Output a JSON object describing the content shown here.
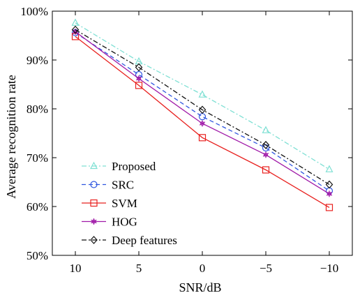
{
  "chart_data": {
    "type": "line",
    "title": "",
    "xlabel": "SNR/dB",
    "ylabel": "Average recognition rate",
    "x": [
      "10",
      "5",
      "0",
      "−5",
      "−10"
    ],
    "x_values": [
      10,
      5,
      0,
      -5,
      -10
    ],
    "ylim": [
      50,
      100
    ],
    "yticks": [
      50,
      60,
      70,
      80,
      90,
      100
    ],
    "ytick_labels": [
      "50%",
      "60%",
      "70%",
      "80%",
      "90%",
      "100%"
    ],
    "grid": false,
    "legend_position": "bottom-left",
    "series": [
      {
        "name": "Proposed",
        "values": [
          97.6,
          89.7,
          82.9,
          75.6,
          67.6
        ],
        "color": "#7fe0d4",
        "marker": "triangle",
        "dash": "dash-dot"
      },
      {
        "name": "SRC",
        "values": [
          95.6,
          87.0,
          78.4,
          72.0,
          63.2
        ],
        "color": "#2f56e0",
        "marker": "circle",
        "dash": "dashed"
      },
      {
        "name": "SVM",
        "values": [
          94.8,
          84.8,
          74.1,
          67.5,
          59.8
        ],
        "color": "#e8201e",
        "marker": "square",
        "dash": "solid"
      },
      {
        "name": "HOG",
        "values": [
          95.8,
          86.2,
          77.0,
          70.6,
          62.6
        ],
        "color": "#a01aa8",
        "marker": "star",
        "dash": "solid"
      },
      {
        "name": "Deep features",
        "values": [
          96.2,
          88.5,
          79.8,
          72.6,
          64.5
        ],
        "color": "#111111",
        "marker": "diamond",
        "dash": "dash-dot"
      }
    ]
  }
}
